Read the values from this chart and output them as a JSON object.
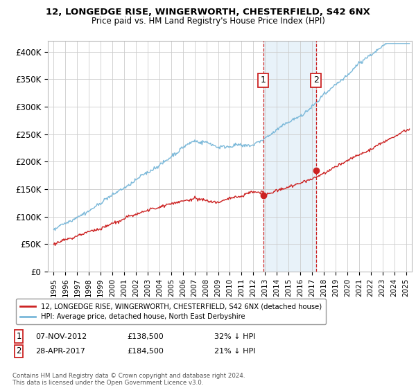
{
  "title1": "12, LONGEDGE RISE, WINGERWORTH, CHESTERFIELD, S42 6NX",
  "title2": "Price paid vs. HM Land Registry's House Price Index (HPI)",
  "ylabel_ticks": [
    "£0",
    "£50K",
    "£100K",
    "£150K",
    "£200K",
    "£250K",
    "£300K",
    "£350K",
    "£400K"
  ],
  "ytick_values": [
    0,
    50000,
    100000,
    150000,
    200000,
    250000,
    300000,
    350000,
    400000
  ],
  "ylim": [
    0,
    420000
  ],
  "xlim_start": 1994.5,
  "xlim_end": 2025.5,
  "hpi_color": "#7ab8d9",
  "price_color": "#cc2222",
  "marker1_date": 2012.85,
  "marker2_date": 2017.33,
  "marker1_price": 138500,
  "marker2_price": 184500,
  "legend_line1": "12, LONGEDGE RISE, WINGERWORTH, CHESTERFIELD, S42 6NX (detached house)",
  "legend_line2": "HPI: Average price, detached house, North East Derbyshire",
  "footer": "Contains HM Land Registry data © Crown copyright and database right 2024.\nThis data is licensed under the Open Government Licence v3.0.",
  "background_color": "#ffffff",
  "grid_color": "#cccccc",
  "shaded_region_color": "#d6e8f5",
  "shaded_alpha": 0.55,
  "ann1_date": "07-NOV-2012",
  "ann1_price": "£138,500",
  "ann1_hpi": "32% ↓ HPI",
  "ann2_date": "28-APR-2017",
  "ann2_price": "£184,500",
  "ann2_hpi": "21% ↓ HPI"
}
